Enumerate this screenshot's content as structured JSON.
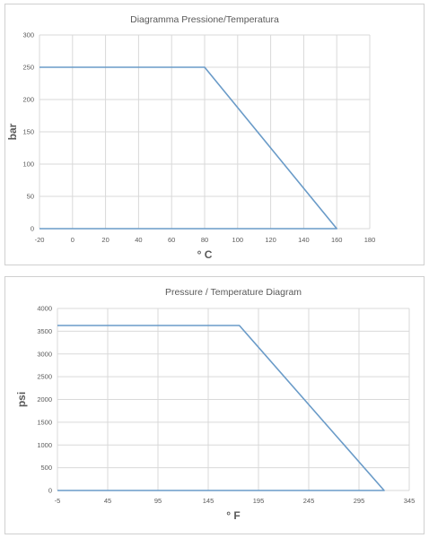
{
  "chart_data": [
    {
      "type": "line",
      "title": "Diagramma Pressione/Temperatura",
      "xlabel": "° C",
      "ylabel": "bar",
      "xlim": [
        -20,
        180
      ],
      "ylim": [
        0,
        300
      ],
      "xticks": [
        -20,
        0,
        20,
        40,
        60,
        80,
        100,
        120,
        140,
        160,
        180
      ],
      "yticks": [
        0,
        50,
        100,
        150,
        200,
        250,
        300
      ],
      "grid": true,
      "series": [
        {
          "color": "#6a9bc8",
          "points": [
            [
              -20,
              250
            ],
            [
              80,
              250
            ],
            [
              160,
              0
            ],
            [
              -20,
              0
            ]
          ]
        }
      ]
    },
    {
      "type": "line",
      "title": "Pressure / Temperature Diagram",
      "xlabel": "° F",
      "ylabel": "psi",
      "xlim": [
        -5,
        345
      ],
      "ylim": [
        0,
        4000
      ],
      "xticks": [
        -5,
        45,
        95,
        145,
        195,
        245,
        295,
        345
      ],
      "yticks": [
        0,
        500,
        1000,
        1500,
        2000,
        2500,
        3000,
        3500,
        4000
      ],
      "grid": true,
      "series": [
        {
          "color": "#6a9bc8",
          "points": [
            [
              -5,
              3625
            ],
            [
              176,
              3625
            ],
            [
              320,
              0
            ],
            [
              -5,
              0
            ]
          ]
        }
      ]
    }
  ]
}
